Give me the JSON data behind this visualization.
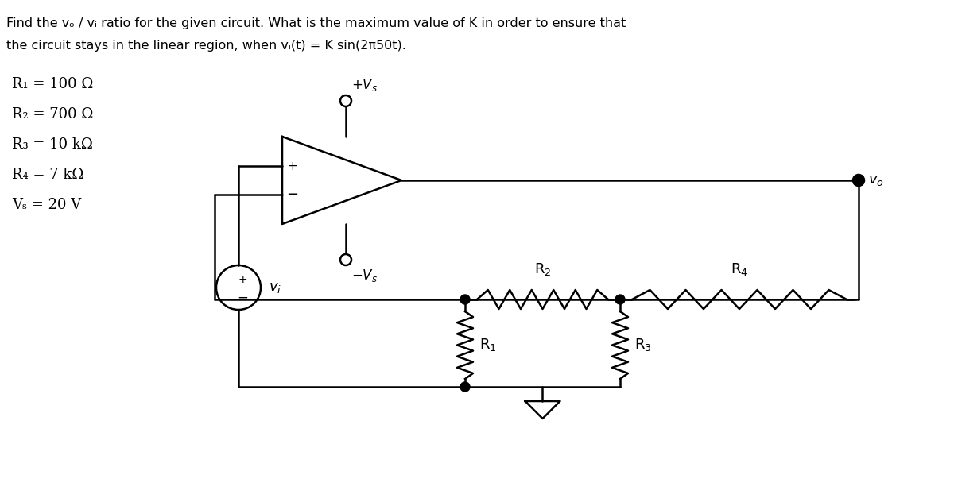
{
  "title_line1": "Find the vₒ / vᵢ ratio for the given circuit. What is the maximum value of K in order to ensure that",
  "title_line2": "the circuit stays in the linear region, when vᵢ(t) = K sin(2π50t).",
  "params": [
    "R₁ = 100 Ω",
    "R₂ = 700 Ω",
    "R₃ = 10 kΩ",
    "R₄ = 7 kΩ",
    "Vₛ = 20 V"
  ],
  "bg_color": "#ffffff",
  "line_color": "#000000",
  "text_color": "#000000"
}
